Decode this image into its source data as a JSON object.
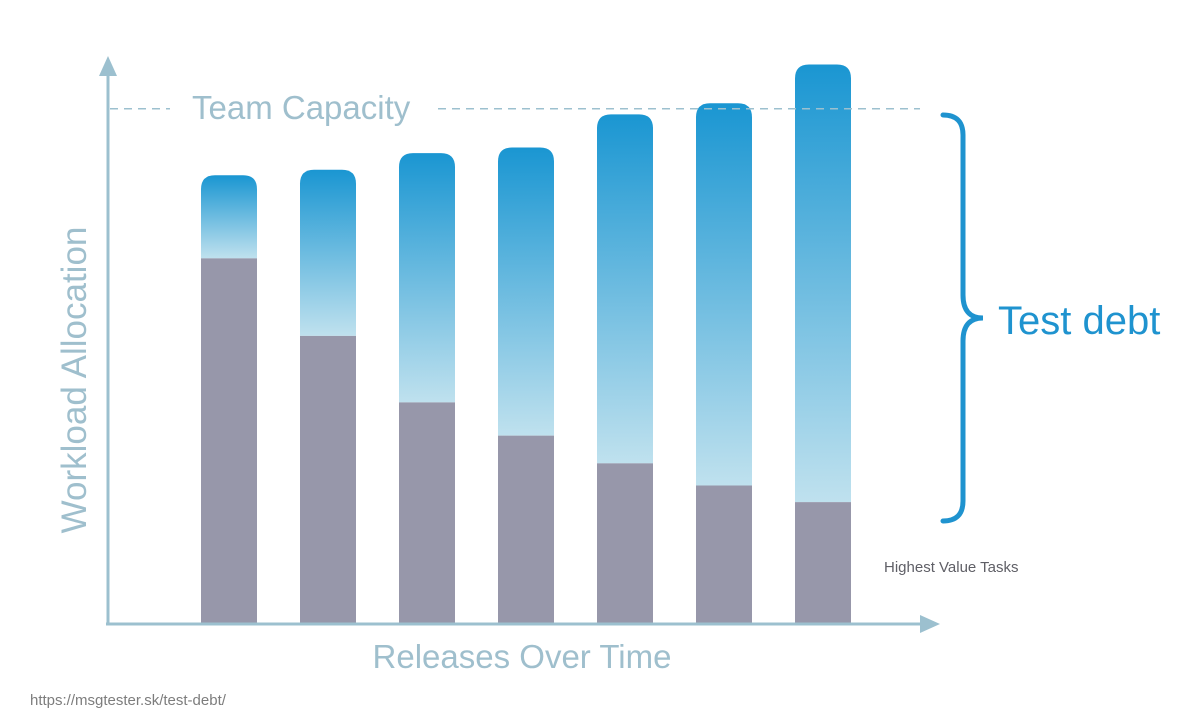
{
  "chart_data": {
    "type": "bar",
    "stacked": true,
    "xlabel": "Releases Over Time",
    "ylabel": "Workload Allocation",
    "ylim": [
      0,
      100
    ],
    "categories": [
      "",
      "",
      "",
      "",
      "",
      "",
      ""
    ],
    "series": [
      {
        "name": "Highest Value Tasks",
        "values": [
          66,
          52,
          40,
          34,
          29,
          25,
          22
        ]
      },
      {
        "name": "Test debt",
        "values": [
          15,
          30,
          45,
          52,
          63,
          69,
          79
        ]
      }
    ],
    "capacity": {
      "label": "Team Capacity",
      "value": 93
    },
    "grid": false,
    "colors": {
      "base": "#9797aa",
      "debt_top": "#1a96d2",
      "debt_bottom": "#bfe1ee",
      "axis": "#9cc0cf",
      "brace": "#1f93cf"
    }
  },
  "source_url": "https://msgtester.sk/test-debt/"
}
